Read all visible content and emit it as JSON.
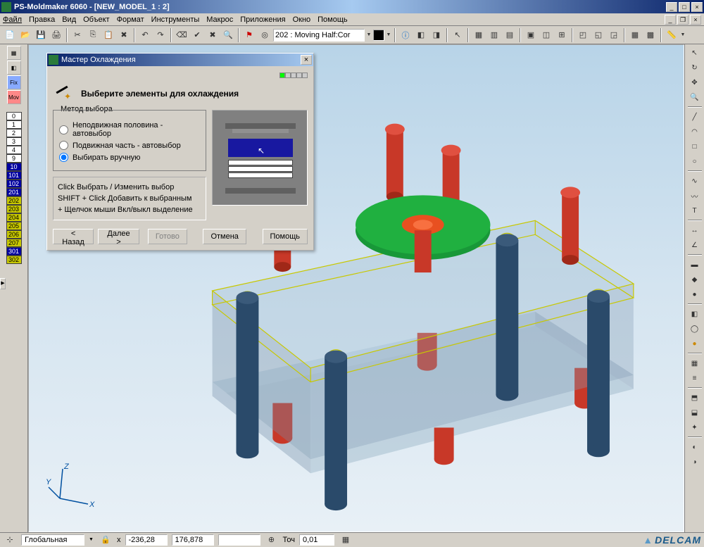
{
  "app": {
    "title": "PS-Moldmaker 6060 - [NEW_MODEL_1 : 2]",
    "brand": "DELCAM"
  },
  "menu": {
    "file": "Файл",
    "edit": "Правка",
    "view": "Вид",
    "object": "Объект",
    "format": "Формат",
    "tools": "Инструменты",
    "macros": "Макрос",
    "apps": "Приложения",
    "window": "Окно",
    "help": "Помощь"
  },
  "toolbar": {
    "combo": "202 : Moving Half:Cor"
  },
  "leftbar": {
    "fix": "Fix",
    "mov": "Mov",
    "levels": [
      {
        "n": "0",
        "bg": "#ffffff",
        "fg": "#000"
      },
      {
        "n": "1",
        "bg": "#ffffff",
        "fg": "#000"
      },
      {
        "n": "2",
        "bg": "#ffffff",
        "fg": "#000"
      },
      {
        "n": "3",
        "bg": "#ffffff",
        "fg": "#000"
      },
      {
        "n": "4",
        "bg": "#ffffff",
        "fg": "#000"
      },
      {
        "n": "9",
        "bg": "#ffffff",
        "fg": "#000"
      },
      {
        "n": "10",
        "bg": "#0000a0",
        "fg": "#fff"
      },
      {
        "n": "101",
        "bg": "#0000a0",
        "fg": "#fff"
      },
      {
        "n": "102",
        "bg": "#0000a0",
        "fg": "#fff"
      },
      {
        "n": "201",
        "bg": "#0000a0",
        "fg": "#fff"
      },
      {
        "n": "202",
        "bg": "#c8c800",
        "fg": "#000"
      },
      {
        "n": "203",
        "bg": "#c8c800",
        "fg": "#000"
      },
      {
        "n": "204",
        "bg": "#c8c800",
        "fg": "#000"
      },
      {
        "n": "205",
        "bg": "#c8c800",
        "fg": "#000"
      },
      {
        "n": "206",
        "bg": "#c8c800",
        "fg": "#000"
      },
      {
        "n": "207",
        "bg": "#c8c800",
        "fg": "#000"
      },
      {
        "n": "301",
        "bg": "#0000a0",
        "fg": "#fff"
      },
      {
        "n": "302",
        "bg": "#c8c800",
        "fg": "#000"
      }
    ]
  },
  "dialog": {
    "title": "Мастер Охлаждения",
    "heading": "Выберите элементы для охлаждения",
    "groupbox_label": "Метод выбора",
    "radios": {
      "r1": "Неподвижная половина - автовыбор",
      "r2": "Подвижная часть - автовыбор",
      "r3": "Выбирать вручную"
    },
    "hints": {
      "h1": "Click  Выбрать / Изменить выбор",
      "h2": "SHIFT + Click  Добавить к выбранным",
      "h3": "+ Щелчок мыши  Вкл/выкл выделение"
    },
    "buttons": {
      "back": "< Назад",
      "next": "Далее >",
      "finish": "Готово",
      "cancel": "Отмена",
      "help": "Помощь"
    }
  },
  "status": {
    "cs": "Глобальная",
    "x_lbl": "x",
    "x": "-236,28",
    "y": "176,878",
    "tol_lbl": "Точ",
    "tol": "0,01"
  },
  "axis": {
    "x": "X",
    "y": "Y",
    "z": "Z"
  },
  "viewport": {
    "bg_top": "#b8d4e8",
    "bg_bottom": "#e8f0f6",
    "wireframe_color": "#c8c800",
    "pillar_color": "#2a4a6a",
    "bolt_top_color": "#c83020",
    "bolt_bottom_color": "#d04030",
    "disc_color": "#20b040",
    "disc_center_color": "#e85020",
    "plate_color": "rgba(160,190,210,0.35)"
  }
}
